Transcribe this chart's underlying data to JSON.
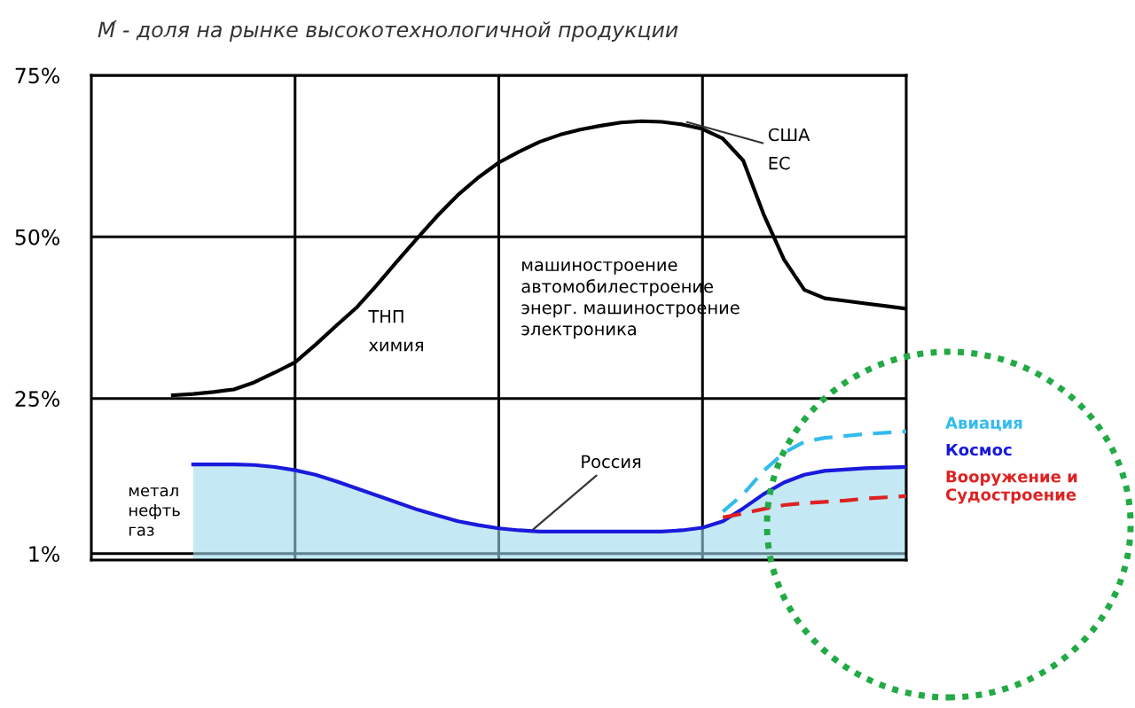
{
  "chart_data": {
    "type": "line",
    "title": "М́ - доля на рынке высокотехнологичной продукции",
    "categories": [
      null,
      null,
      null,
      null,
      null,
      null,
      null,
      null,
      null,
      null,
      null,
      null,
      null,
      null,
      null,
      null,
      null,
      null,
      null,
      null,
      null,
      null,
      null,
      null,
      null,
      null,
      null,
      null,
      null,
      null,
      null,
      null,
      null,
      null,
      null,
      null,
      null,
      null,
      null,
      null,
      null
    ],
    "ylim": [
      0,
      75
    ],
    "yticks": [
      {
        "value": 1,
        "label": "1%"
      },
      {
        "value": 25,
        "label": "25%"
      },
      {
        "value": 50,
        "label": "50%"
      },
      {
        "value": 75,
        "label": "75%"
      }
    ],
    "tick_labels": "y",
    "grid": true,
    "line_style": "solid",
    "marker": "none",
    "series": [
      {
        "color": "#000000",
        "values": [
          null,
          null,
          null,
          null,
          25.5,
          25.7,
          26.0,
          26.4,
          27.5,
          29.0,
          30.6,
          33.3,
          36.2,
          39.0,
          42.5,
          46.2,
          49.8,
          53.3,
          56.5,
          59.2,
          61.5,
          63.2,
          64.7,
          65.8,
          66.6,
          67.2,
          67.7,
          67.9,
          67.8,
          67.4,
          66.7,
          65.2,
          61.8,
          53.5,
          46.5,
          41.8,
          40.5,
          40.1,
          39.7,
          39.3,
          38.9
        ]
      },
      {
        "name": "Космос",
        "color": "#1a1adc",
        "values": [
          null,
          null,
          null,
          null,
          null,
          14.8,
          14.8,
          14.8,
          14.7,
          14.4,
          13.9,
          13.2,
          12.2,
          11.1,
          10.0,
          8.9,
          7.8,
          6.9,
          6.0,
          5.4,
          4.9,
          4.6,
          4.4,
          4.4,
          4.4,
          4.4,
          4.4,
          4.4,
          4.4,
          4.6,
          5.0,
          6.0,
          8.0,
          10.2,
          12.0,
          13.2,
          13.8,
          14.0,
          14.2,
          14.3,
          14.4
        ]
      },
      {
        "name": "Авиация",
        "color": "#33bbee",
        "line_style": "dashed",
        "values": [
          null,
          null,
          null,
          null,
          null,
          null,
          null,
          null,
          null,
          null,
          null,
          null,
          null,
          null,
          null,
          null,
          null,
          null,
          null,
          null,
          null,
          null,
          null,
          null,
          null,
          null,
          null,
          null,
          null,
          null,
          null,
          7.5,
          10.2,
          13.8,
          16.6,
          18.3,
          18.9,
          19.2,
          19.5,
          19.7,
          19.9
        ]
      },
      {
        "name": "Вооружение и Судостроение",
        "color": "#dd2222",
        "line_style": "dashed",
        "values": [
          null,
          null,
          null,
          null,
          null,
          null,
          null,
          null,
          null,
          null,
          null,
          null,
          null,
          null,
          null,
          null,
          null,
          null,
          null,
          null,
          null,
          null,
          null,
          null,
          null,
          null,
          null,
          null,
          null,
          null,
          null,
          6.6,
          7.2,
          7.9,
          8.5,
          8.8,
          9.0,
          9.2,
          9.5,
          9.7,
          9.9
        ]
      }
    ],
    "annotations": [
      "США\nЕС",
      "Россия",
      "машиностроение\nавтомобилестроение\nэнерг. машиностроение\nэлектроника",
      "ТНП\nхимия",
      "метал\nнефть\nгаз"
    ]
  }
}
